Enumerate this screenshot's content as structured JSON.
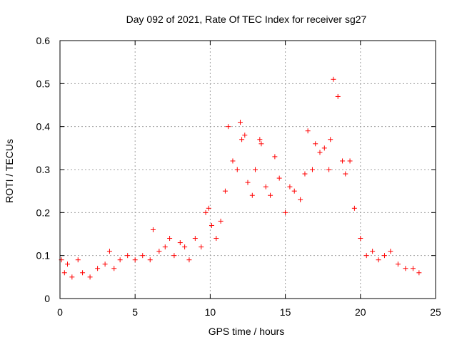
{
  "chart_data": {
    "type": "scatter",
    "title": "Day 092 of 2021, Rate Of TEC Index for receiver sg27",
    "xlabel": "GPS time / hours",
    "ylabel": "ROTI / TECUs",
    "xlim": [
      0,
      25
    ],
    "ylim": [
      0,
      0.6
    ],
    "xticks": [
      0,
      5,
      10,
      15,
      20,
      25
    ],
    "yticks": [
      0,
      0.1,
      0.2,
      0.3,
      0.4,
      0.5,
      0.6
    ],
    "xtick_labels": [
      "0",
      "5",
      "10",
      "15",
      "20",
      "25"
    ],
    "ytick_labels": [
      "0",
      "0.1",
      "0.2",
      "0.3",
      "0.4",
      "0.5",
      "0.6"
    ],
    "grid": true,
    "marker": "plus",
    "color": "#ff0000",
    "series": [
      {
        "x": [
          0.1,
          0.3,
          0.5,
          0.8,
          1.2,
          1.5,
          2.0,
          2.5,
          3.0,
          3.3,
          3.6,
          4.0,
          4.5,
          5.0,
          5.5,
          6.0,
          6.2,
          6.6,
          7.0,
          7.3,
          7.6,
          8.0,
          8.3,
          8.6,
          9.0,
          9.4,
          9.7,
          9.9,
          10.1,
          10.4,
          10.7,
          11.0,
          11.2,
          11.5,
          11.8,
          12.0,
          12.1,
          12.3,
          12.5,
          12.8,
          13.0,
          13.3,
          13.4,
          13.7,
          14.0,
          14.3,
          14.6,
          15.0,
          15.3,
          15.6,
          16.0,
          16.3,
          16.5,
          16.8,
          17.0,
          17.3,
          17.6,
          17.9,
          18.0,
          18.2,
          18.5,
          18.8,
          19.0,
          19.3,
          19.6,
          20.0,
          20.4,
          20.8,
          21.2,
          21.6,
          22.0,
          22.5,
          23.0,
          23.5,
          23.9
        ],
        "y": [
          0.09,
          0.06,
          0.08,
          0.05,
          0.09,
          0.06,
          0.05,
          0.07,
          0.08,
          0.11,
          0.07,
          0.09,
          0.1,
          0.09,
          0.1,
          0.09,
          0.16,
          0.11,
          0.12,
          0.14,
          0.1,
          0.13,
          0.12,
          0.09,
          0.14,
          0.12,
          0.2,
          0.21,
          0.17,
          0.14,
          0.18,
          0.25,
          0.4,
          0.32,
          0.3,
          0.41,
          0.37,
          0.38,
          0.27,
          0.24,
          0.3,
          0.37,
          0.36,
          0.26,
          0.24,
          0.33,
          0.28,
          0.2,
          0.26,
          0.25,
          0.23,
          0.29,
          0.39,
          0.3,
          0.36,
          0.34,
          0.35,
          0.3,
          0.37,
          0.51,
          0.47,
          0.32,
          0.29,
          0.32,
          0.21,
          0.14,
          0.1,
          0.11,
          0.09,
          0.1,
          0.11,
          0.08,
          0.07,
          0.07,
          0.06
        ]
      }
    ]
  }
}
